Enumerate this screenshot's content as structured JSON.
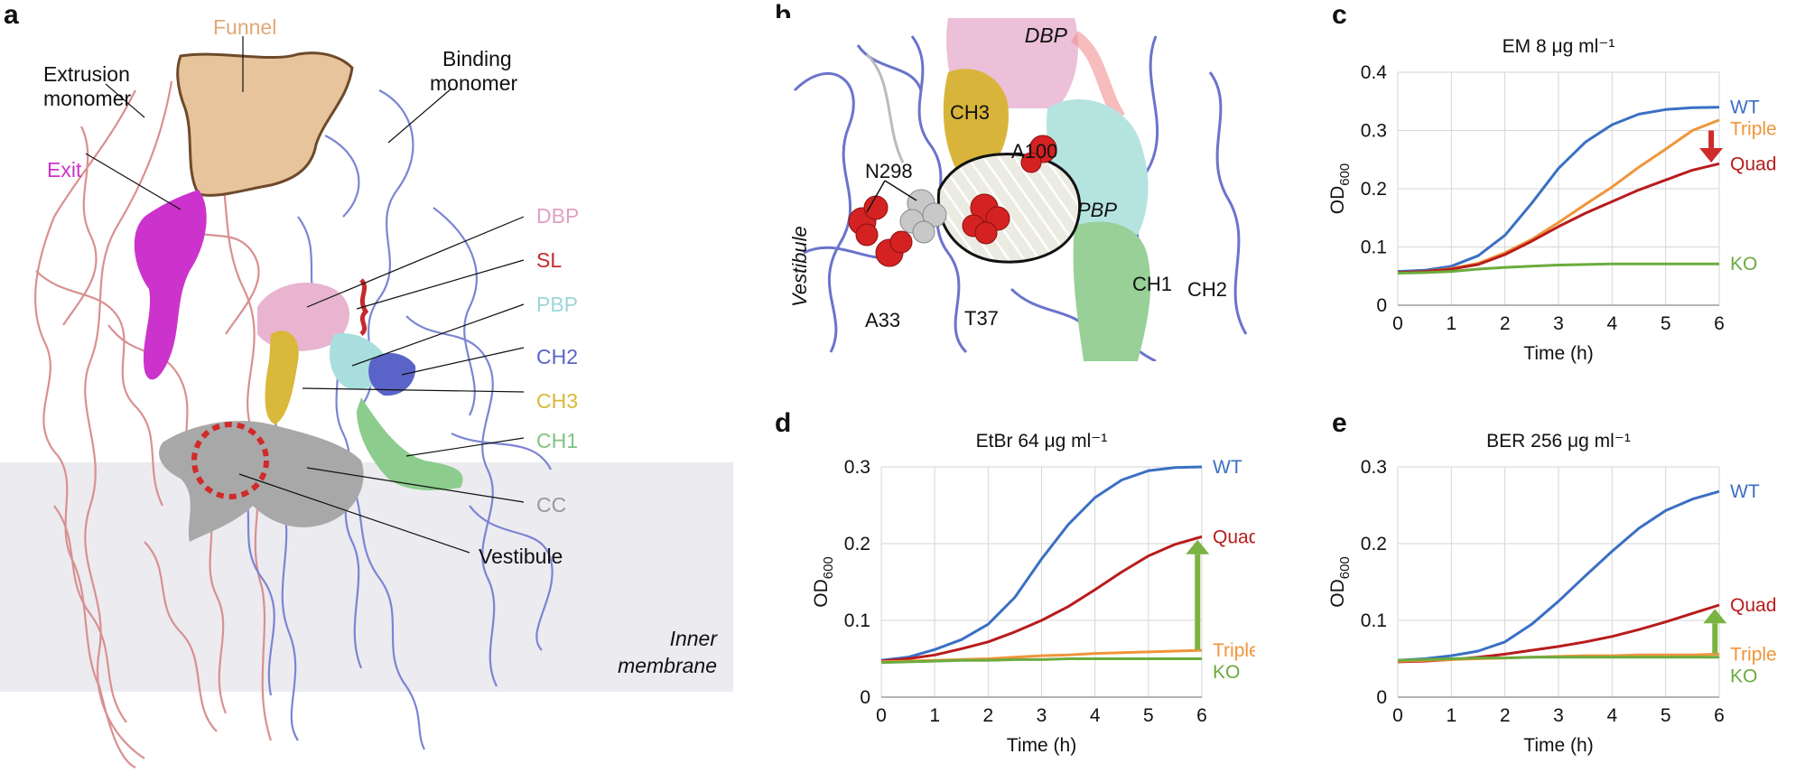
{
  "panels": {
    "a": "a",
    "b": "b",
    "c": "c",
    "d": "d",
    "e": "e"
  },
  "panel_a": {
    "labels": {
      "funnel": "Funnel",
      "extrusion_l1": "Extrusion",
      "extrusion_l2": "monomer",
      "binding_l1": "Binding",
      "binding_l2": "monomer",
      "exit": "Exit",
      "dbp": "DBP",
      "sl": "SL",
      "pbp": "PBP",
      "ch2": "CH2",
      "ch3": "CH3",
      "ch1": "CH1",
      "cc": "CC",
      "vestibule": "Vestibule",
      "membrane_l1": "Inner",
      "membrane_l2": "membrane"
    },
    "colors": {
      "funnel": "#e7c49c",
      "exit": "#cc33cc",
      "dbp": "#e8b4cf",
      "sl": "#c8282c",
      "pbp": "#a8dede",
      "ch2": "#5a64c8",
      "ch3": "#d9b83a",
      "ch1": "#8ccc8c",
      "cc": "#a8a8a8",
      "extrusion_trace": "#d99090",
      "binding_trace": "#7c84d4",
      "membrane": "#ecebf0"
    }
  },
  "panel_b": {
    "labels": {
      "dbp": "DBP",
      "ch3": "CH3",
      "a100": "A100",
      "n298": "N298",
      "pbp": "PBP",
      "vestibule": "Vestibule",
      "a33": "A33",
      "t37": "T37",
      "ch1": "CH1",
      "ch2": "CH2"
    }
  },
  "chart_data": [
    {
      "panel": "c",
      "type": "line",
      "title": "EM 8 μg ml⁻¹",
      "xlabel": "Time (h)",
      "ylabel": "OD600",
      "xlim": [
        0,
        6
      ],
      "ylim": [
        0,
        0.4
      ],
      "xticks": [
        "0",
        "1",
        "2",
        "3",
        "4",
        "5",
        "6"
      ],
      "yticks": [
        "0",
        "0.1",
        "0.2",
        "0.3",
        "0.4"
      ],
      "grid": true,
      "x": [
        0,
        0.5,
        1,
        1.5,
        2,
        2.5,
        3,
        3.5,
        4,
        4.5,
        5,
        5.5,
        6
      ],
      "series": [
        {
          "name": "WT",
          "color": "#3a6fc4",
          "values": [
            0.058,
            0.06,
            0.067,
            0.085,
            0.12,
            0.175,
            0.235,
            0.28,
            0.31,
            0.328,
            0.336,
            0.339,
            0.34
          ]
        },
        {
          "name": "Triple",
          "color": "#f0953a",
          "values": [
            0.056,
            0.058,
            0.063,
            0.072,
            0.09,
            0.113,
            0.142,
            0.173,
            0.203,
            0.237,
            0.268,
            0.3,
            0.318
          ]
        },
        {
          "name": "Quad",
          "color": "#b81c1c",
          "values": [
            0.056,
            0.058,
            0.062,
            0.07,
            0.087,
            0.11,
            0.135,
            0.158,
            0.178,
            0.198,
            0.215,
            0.232,
            0.243
          ]
        },
        {
          "name": "KO",
          "color": "#6bab3e",
          "values": [
            0.055,
            0.056,
            0.058,
            0.062,
            0.065,
            0.067,
            0.069,
            0.07,
            0.071,
            0.071,
            0.071,
            0.071,
            0.071
          ]
        }
      ],
      "arrow": {
        "color": "#d02a2a",
        "x": 5.85,
        "from": 0.3,
        "to": 0.245
      }
    },
    {
      "panel": "d",
      "type": "line",
      "title": "EtBr 64 μg ml⁻¹",
      "xlabel": "Time (h)",
      "ylabel": "OD600",
      "xlim": [
        0,
        6
      ],
      "ylim": [
        0,
        0.3
      ],
      "xticks": [
        "0",
        "1",
        "2",
        "3",
        "4",
        "5",
        "6"
      ],
      "yticks": [
        "0",
        "0.1",
        "0.2",
        "0.3"
      ],
      "grid": true,
      "x": [
        0,
        0.5,
        1,
        1.5,
        2,
        2.5,
        3,
        3.5,
        4,
        4.5,
        5,
        5.5,
        6
      ],
      "series": [
        {
          "name": "WT",
          "color": "#3a6fc4",
          "values": [
            0.048,
            0.052,
            0.062,
            0.075,
            0.095,
            0.13,
            0.18,
            0.225,
            0.26,
            0.283,
            0.295,
            0.299,
            0.3
          ]
        },
        {
          "name": "Quad",
          "color": "#b81c1c",
          "values": [
            0.047,
            0.05,
            0.055,
            0.063,
            0.072,
            0.085,
            0.1,
            0.118,
            0.14,
            0.163,
            0.184,
            0.199,
            0.209
          ]
        },
        {
          "name": "Triple",
          "color": "#f0953a",
          "values": [
            0.046,
            0.047,
            0.048,
            0.049,
            0.05,
            0.052,
            0.054,
            0.055,
            0.057,
            0.058,
            0.059,
            0.06,
            0.061
          ]
        },
        {
          "name": "KO",
          "color": "#6bab3e",
          "values": [
            0.045,
            0.046,
            0.047,
            0.048,
            0.048,
            0.049,
            0.049,
            0.05,
            0.05,
            0.05,
            0.05,
            0.05,
            0.05
          ]
        }
      ],
      "arrow": {
        "color": "#7bb342",
        "x": 5.92,
        "from": 0.062,
        "to": 0.205
      }
    },
    {
      "panel": "e",
      "type": "line",
      "title": "BER 256 μg ml⁻¹",
      "xlabel": "Time (h)",
      "ylabel": "OD600",
      "xlim": [
        0,
        6
      ],
      "ylim": [
        0,
        0.3
      ],
      "xticks": [
        "0",
        "1",
        "2",
        "3",
        "4",
        "5",
        "6"
      ],
      "yticks": [
        "0",
        "0.1",
        "0.2",
        "0.3"
      ],
      "grid": true,
      "x": [
        0,
        0.5,
        1,
        1.5,
        2,
        2.5,
        3,
        3.5,
        4,
        4.5,
        5,
        5.5,
        6
      ],
      "series": [
        {
          "name": "WT",
          "color": "#3a6fc4",
          "values": [
            0.048,
            0.05,
            0.054,
            0.06,
            0.072,
            0.095,
            0.125,
            0.158,
            0.19,
            0.22,
            0.243,
            0.258,
            0.268
          ]
        },
        {
          "name": "Quad",
          "color": "#b81c1c",
          "values": [
            0.046,
            0.047,
            0.049,
            0.052,
            0.056,
            0.061,
            0.066,
            0.072,
            0.079,
            0.088,
            0.098,
            0.109,
            0.12
          ]
        },
        {
          "name": "Triple",
          "color": "#f0953a",
          "values": [
            0.047,
            0.048,
            0.049,
            0.05,
            0.051,
            0.052,
            0.053,
            0.054,
            0.054,
            0.055,
            0.055,
            0.055,
            0.056
          ]
        },
        {
          "name": "KO",
          "color": "#6bab3e",
          "values": [
            0.048,
            0.049,
            0.05,
            0.051,
            0.051,
            0.052,
            0.052,
            0.052,
            0.052,
            0.052,
            0.052,
            0.052,
            0.052
          ]
        }
      ],
      "arrow": {
        "color": "#7bb342",
        "x": 5.92,
        "from": 0.057,
        "to": 0.115
      }
    }
  ]
}
